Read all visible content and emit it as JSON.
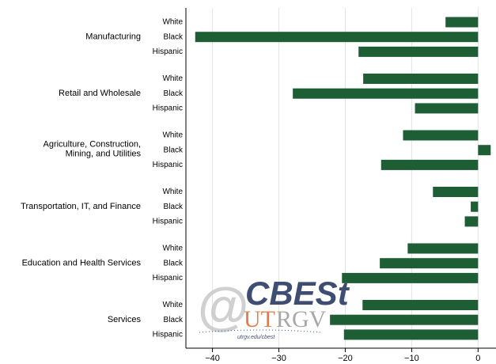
{
  "chart_data": {
    "type": "bar",
    "orientation": "horizontal",
    "subcategories": [
      "White",
      "Black",
      "Hispanic"
    ],
    "groups": [
      {
        "label": [
          "Manufacturing"
        ],
        "values": [
          -4.9,
          -42.6,
          -18.0
        ]
      },
      {
        "label": [
          "Retail and Wholesale"
        ],
        "values": [
          -17.3,
          -27.9,
          -9.5
        ]
      },
      {
        "label": [
          "Agriculture, Construction,",
          "Mining, and Utilities"
        ],
        "values": [
          -11.3,
          1.9,
          -14.6
        ]
      },
      {
        "label": [
          "Transportation, IT, and Finance"
        ],
        "values": [
          -6.8,
          -1.1,
          -2.0
        ]
      },
      {
        "label": [
          "Education and Health Services"
        ],
        "values": [
          -10.6,
          -14.8,
          -20.5
        ]
      },
      {
        "label": [
          "Services"
        ],
        "values": [
          -17.4,
          -22.3,
          -20.2
        ]
      }
    ],
    "color": "#1e5e34",
    "xlim": [
      -44,
      2.7
    ],
    "xticks": [
      {
        "value": -40,
        "label": "−40"
      },
      {
        "value": -30,
        "label": "−30"
      },
      {
        "value": -20,
        "label": "−20"
      },
      {
        "value": -10,
        "label": "−10"
      },
      0
    ],
    "grid": true,
    "logo": {
      "at": "@",
      "top": "CBESt",
      "bottom_left": "UT",
      "bottom_right": "RGV",
      "url": "utrgv.edu/cbest"
    }
  }
}
